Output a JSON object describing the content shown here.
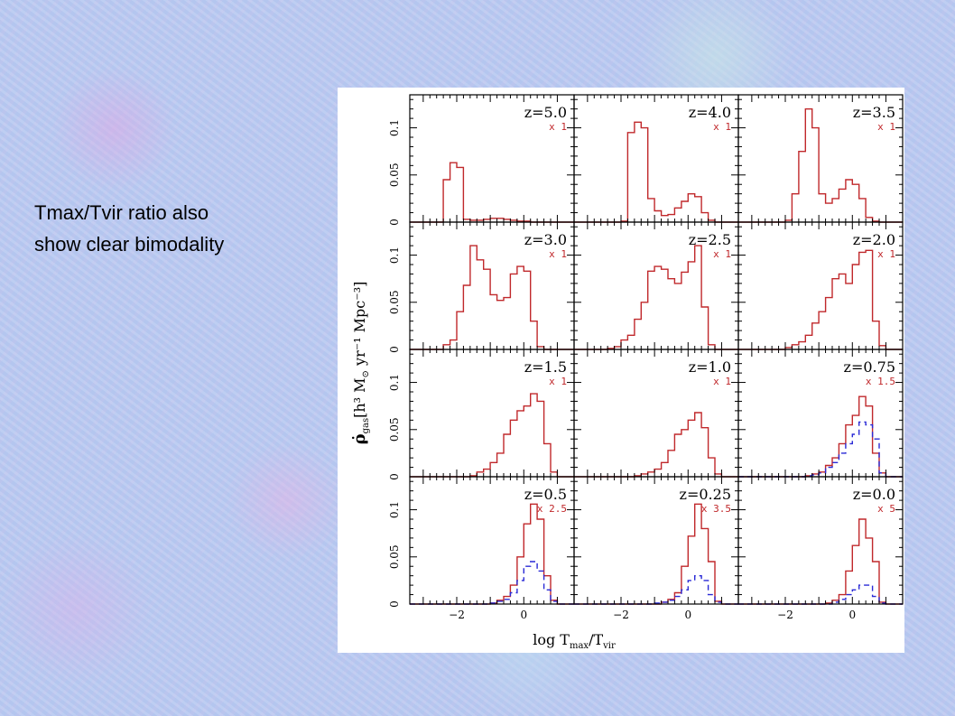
{
  "slide": {
    "text_lines": [
      "Tmax/Tvir ratio also",
      "show clear bimodality"
    ]
  },
  "colors": {
    "solid": "#c0282b",
    "dashed": "#2a2ad6",
    "frame": "#000000",
    "label": "#c0282b"
  },
  "chart_data": {
    "type": "histogram-grid",
    "xlabel": "log T",
    "xlabel_sub1": "max",
    "xlabel_sep": "/T",
    "xlabel_sub2": "vir",
    "ylabel_parts": [
      "ρ̇",
      "gas",
      "[h³ M",
      "⊙",
      " yr⁻¹ Mpc⁻³]"
    ],
    "xlim": [
      -3.4,
      1.5
    ],
    "ylim": [
      0,
      0.135
    ],
    "xticks": [
      -2,
      0
    ],
    "xtick_labels": [
      "−2",
      "0"
    ],
    "yticks": [
      0,
      0.05,
      0.1
    ],
    "ytick_labels": [
      "0",
      "0.05",
      "0.1"
    ],
    "bin_edges": [
      -3.4,
      -3.2,
      -3.0,
      -2.8,
      -2.6,
      -2.4,
      -2.2,
      -2.0,
      -1.8,
      -1.6,
      -1.4,
      -1.2,
      -1.0,
      -0.8,
      -0.6,
      -0.4,
      -0.2,
      0.0,
      0.2,
      0.4,
      0.6,
      0.8,
      1.0,
      1.2,
      1.4
    ],
    "panels": [
      {
        "z_label": "z=5.0",
        "scale_label": "x 1",
        "solid": [
          0,
          0,
          0,
          0,
          0,
          0.045,
          0.063,
          0.058,
          0.003,
          0.002,
          0.002,
          0.003,
          0.004,
          0.004,
          0.003,
          0.002,
          0.001,
          0.001,
          0,
          0,
          0,
          0,
          0,
          0
        ],
        "dashed": null
      },
      {
        "z_label": "z=4.0",
        "scale_label": "x 1",
        "solid": [
          0,
          0,
          0,
          0,
          0,
          0,
          0,
          0.001,
          0.095,
          0.106,
          0.1,
          0.025,
          0.012,
          0.007,
          0.008,
          0.015,
          0.022,
          0.03,
          0.027,
          0.01,
          0.002,
          0,
          0,
          0
        ],
        "dashed": null
      },
      {
        "z_label": "z=3.5",
        "scale_label": "x 1",
        "solid": [
          0,
          0,
          0,
          0,
          0,
          0,
          0,
          0.002,
          0.03,
          0.075,
          0.12,
          0.1,
          0.03,
          0.02,
          0.025,
          0.035,
          0.045,
          0.04,
          0.025,
          0.005,
          0.001,
          0,
          0,
          0
        ],
        "dashed": null
      },
      {
        "z_label": "z=3.0",
        "scale_label": "x 1",
        "solid": [
          0,
          0,
          0,
          0,
          0,
          0.005,
          0.01,
          0.04,
          0.068,
          0.11,
          0.095,
          0.085,
          0.058,
          0.052,
          0.055,
          0.08,
          0.088,
          0.083,
          0.03,
          0.003,
          0,
          0,
          0,
          0
        ],
        "dashed": null
      },
      {
        "z_label": "z=2.5",
        "scale_label": "x 1",
        "solid": [
          0,
          0,
          0,
          0,
          0,
          0.001,
          0.003,
          0.01,
          0.015,
          0.032,
          0.05,
          0.083,
          0.088,
          0.085,
          0.075,
          0.07,
          0.082,
          0.093,
          0.11,
          0.045,
          0.005,
          0,
          0,
          0
        ],
        "dashed": null
      },
      {
        "z_label": "z=2.0",
        "scale_label": "x 1",
        "solid": [
          0,
          0,
          0,
          0,
          0,
          0,
          0,
          0.002,
          0.005,
          0.008,
          0.015,
          0.028,
          0.04,
          0.055,
          0.075,
          0.08,
          0.07,
          0.09,
          0.103,
          0.105,
          0.03,
          0.004,
          0,
          0
        ],
        "dashed": null
      },
      {
        "z_label": "z=1.5",
        "scale_label": "x 1",
        "solid": [
          0,
          0,
          0,
          0,
          0,
          0,
          0,
          0,
          0,
          0.001,
          0.005,
          0.008,
          0.015,
          0.025,
          0.045,
          0.06,
          0.07,
          0.075,
          0.088,
          0.08,
          0.035,
          0.005,
          0,
          0
        ],
        "dashed": null
      },
      {
        "z_label": "z=1.0",
        "scale_label": "x 1",
        "solid": [
          0,
          0,
          0,
          0,
          0,
          0,
          0,
          0,
          0,
          0.001,
          0.003,
          0.005,
          0.008,
          0.015,
          0.028,
          0.045,
          0.05,
          0.06,
          0.068,
          0.052,
          0.02,
          0.003,
          0,
          0
        ],
        "dashed": null
      },
      {
        "z_label": "z=0.75",
        "scale_label": "x 1.5",
        "solid": [
          0,
          0,
          0,
          0,
          0,
          0,
          0,
          0,
          0,
          0,
          0.001,
          0.003,
          0.005,
          0.012,
          0.02,
          0.035,
          0.055,
          0.065,
          0.085,
          0.075,
          0.025,
          0.004,
          0,
          0
        ],
        "dashed": [
          0,
          0,
          0,
          0,
          0,
          0,
          0,
          0,
          0,
          0,
          0.001,
          0.002,
          0.004,
          0.01,
          0.015,
          0.025,
          0.035,
          0.045,
          0.058,
          0.055,
          0.04,
          0.004,
          0,
          0
        ]
      },
      {
        "z_label": "z=0.5",
        "scale_label": "x 2.5",
        "solid": [
          0,
          0,
          0,
          0,
          0,
          0,
          0,
          0,
          0,
          0,
          0,
          0,
          0.001,
          0.004,
          0.008,
          0.02,
          0.05,
          0.085,
          0.106,
          0.09,
          0.03,
          0.004,
          0,
          0
        ],
        "dashed": [
          0,
          0,
          0,
          0,
          0,
          0,
          0,
          0,
          0,
          0,
          0,
          0,
          0.001,
          0.003,
          0.005,
          0.012,
          0.025,
          0.04,
          0.045,
          0.035,
          0.015,
          0.003,
          0,
          0
        ]
      },
      {
        "z_label": "z=0.25",
        "scale_label": "x 3.5",
        "solid": [
          0,
          0,
          0,
          0,
          0,
          0,
          0,
          0,
          0,
          0,
          0,
          0,
          0,
          0.002,
          0.005,
          0.012,
          0.04,
          0.072,
          0.106,
          0.08,
          0.045,
          0.003,
          0,
          0
        ],
        "dashed": [
          0,
          0,
          0,
          0,
          0,
          0,
          0,
          0,
          0,
          0,
          0,
          0,
          0.001,
          0.002,
          0.004,
          0.008,
          0.015,
          0.025,
          0.03,
          0.025,
          0.01,
          0.002,
          0,
          0
        ]
      },
      {
        "z_label": "z=0.0",
        "scale_label": "x 5",
        "solid": [
          0,
          0,
          0,
          0,
          0,
          0,
          0,
          0,
          0,
          0,
          0,
          0,
          0,
          0.001,
          0.004,
          0.01,
          0.035,
          0.062,
          0.09,
          0.07,
          0.045,
          0.002,
          0,
          0
        ],
        "dashed": [
          0,
          0,
          0,
          0,
          0,
          0,
          0,
          0,
          0,
          0,
          0,
          0,
          0,
          0,
          0.002,
          0.005,
          0.01,
          0.015,
          0.02,
          0.02,
          0.008,
          0.001,
          0,
          0
        ]
      }
    ]
  }
}
